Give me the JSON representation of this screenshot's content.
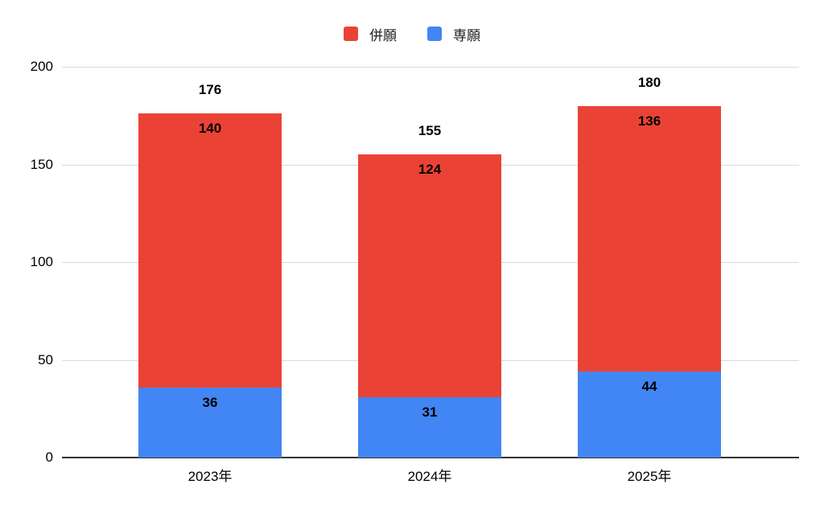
{
  "page": {
    "background": "#ffffff"
  },
  "legend": {
    "items": [
      {
        "label": "併願",
        "color": "#EA4335"
      },
      {
        "label": "専願",
        "color": "#4285F4"
      }
    ]
  },
  "chart_data": {
    "type": "bar",
    "stacked": true,
    "title": "",
    "xlabel": "",
    "ylabel": "",
    "categories": [
      "2023年",
      "2024年",
      "2025年"
    ],
    "series": [
      {
        "name": "専願",
        "color": "#4285F4",
        "values": [
          36,
          31,
          44
        ]
      },
      {
        "name": "併願",
        "color": "#EA4335",
        "values": [
          140,
          124,
          136
        ]
      }
    ],
    "totals": [
      176,
      155,
      180
    ],
    "segment_labels_shown": true,
    "total_labels_shown": true,
    "yticks": [
      0,
      50,
      100,
      150,
      200
    ],
    "ylim": [
      0,
      200
    ],
    "grid": true,
    "legend_position": "top",
    "colors": {
      "grid": "#dadada",
      "axis": "#333333",
      "label_text": "#000000"
    }
  }
}
